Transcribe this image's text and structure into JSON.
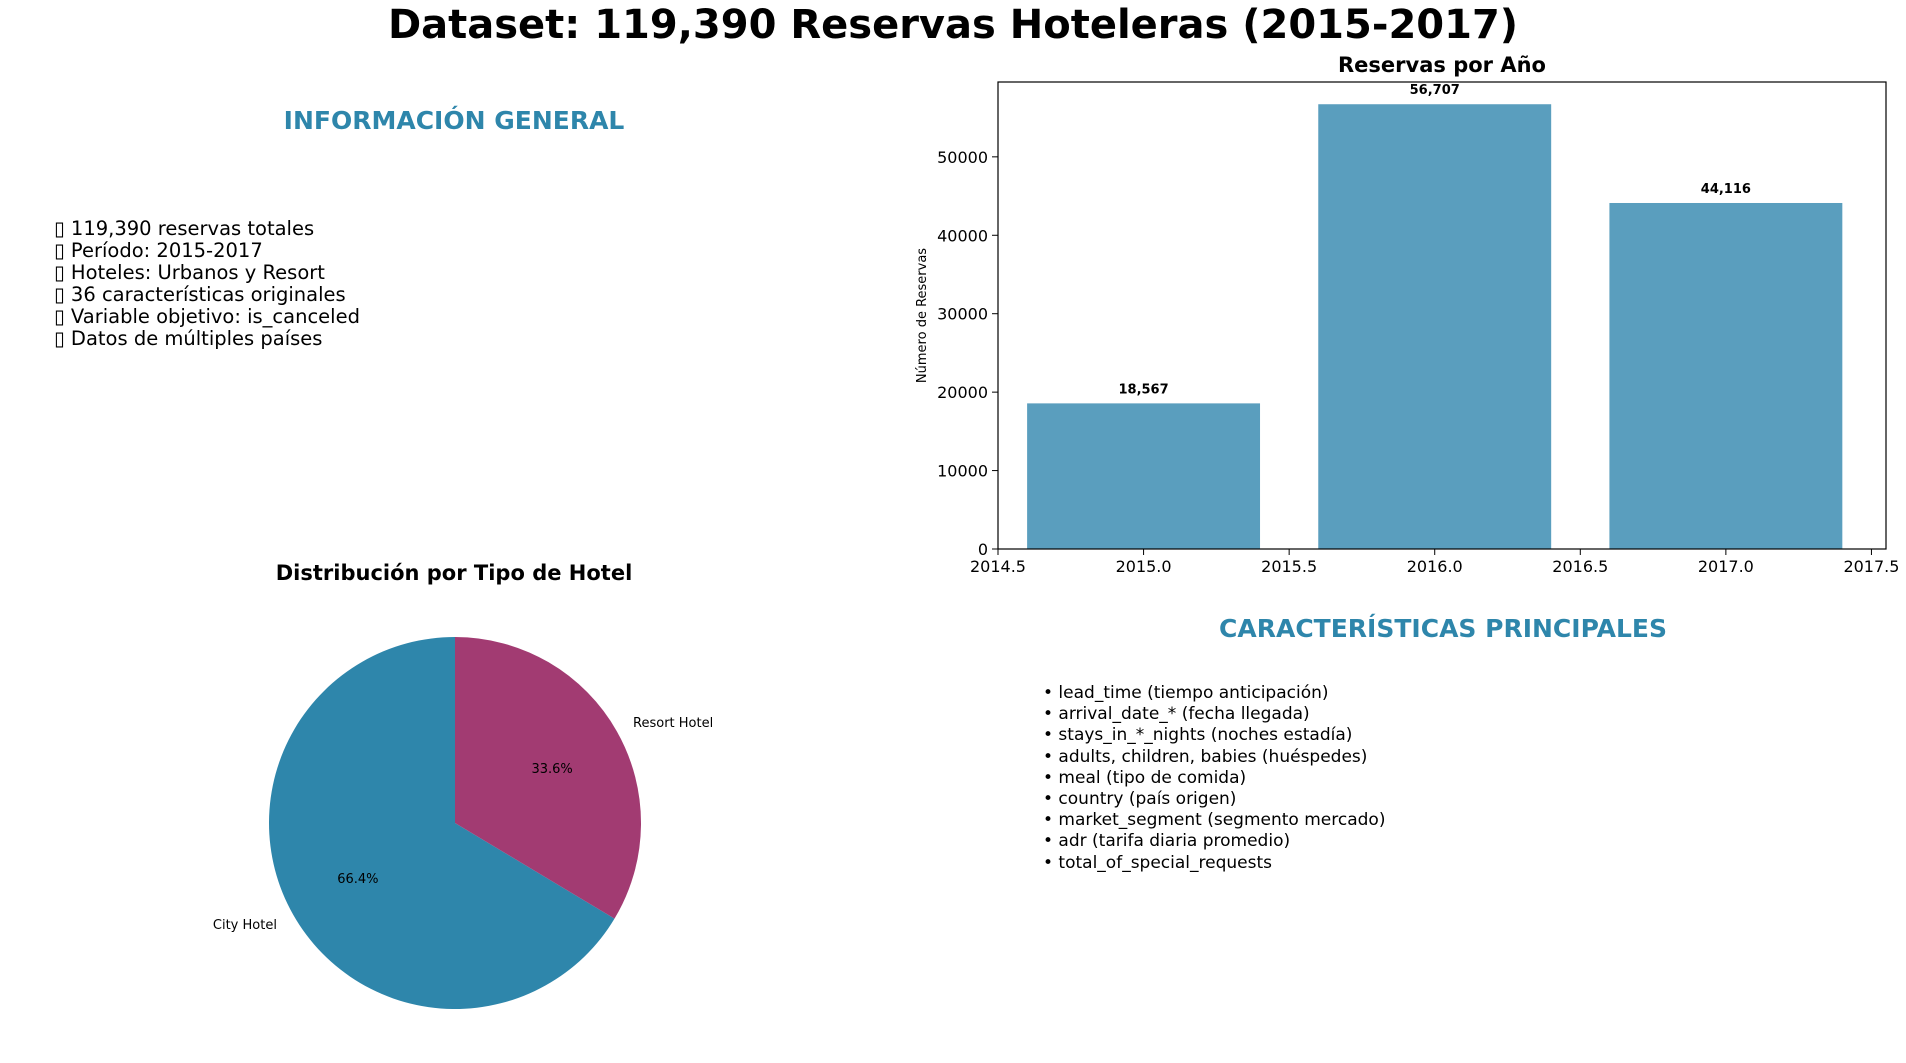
{
  "suptitle": "Dataset: 119,390 Reservas Hoteleras (2015-2017)",
  "info": {
    "title": "INFORMACIÓN GENERAL",
    "items": [
      "▯ 119,390 reservas totales",
      "▯ Período: 2015-2017",
      "▯ Hoteles: Urbanos y Resort",
      "▯ 36 características originales",
      "▯ Variable objetivo: is_canceled",
      "▯ Datos de múltiples países"
    ]
  },
  "features": {
    "title": "CARACTERÍSTICAS PRINCIPALES",
    "items": [
      "• lead_time (tiempo anticipación)",
      "• arrival_date_* (fecha llegada)",
      "• stays_in_*_nights (noches estadía)",
      "• adults, children, babies (huéspedes)",
      "• meal (tipo de comida)",
      "• country (país origen)",
      "• market_segment (segmento mercado)",
      "• adr (tarifa diaria promedio)",
      "• total_of_special_requests"
    ]
  },
  "chart_data": [
    {
      "type": "bar",
      "title": "Reservas por Año",
      "xlabel": "",
      "ylabel": "Número de Reservas",
      "x": [
        2015,
        2016,
        2017
      ],
      "values": [
        18567,
        56707,
        44116
      ],
      "value_labels": [
        "18,567",
        "56,707",
        "44,116"
      ],
      "bar_width": 0.8,
      "xlim": [
        2014.5,
        2017.55
      ],
      "ylim": [
        0,
        59542
      ],
      "xticks": [
        2014.5,
        2015.0,
        2015.5,
        2016.0,
        2016.5,
        2017.0,
        2017.5
      ],
      "xtick_labels": [
        "2014.5",
        "2015.0",
        "2015.5",
        "2016.0",
        "2016.5",
        "2017.0",
        "2017.5"
      ],
      "yticks": [
        0,
        10000,
        20000,
        30000,
        40000,
        50000
      ],
      "ytick_labels": [
        "0",
        "10000",
        "20000",
        "30000",
        "40000",
        "50000"
      ],
      "color": "#5a9ebe",
      "grid": false
    },
    {
      "type": "pie",
      "title": "Distribución por Tipo de Hotel",
      "labels": [
        "City Hotel",
        "Resort Hotel"
      ],
      "values": [
        66.4,
        33.6
      ],
      "pct_labels": [
        "66.4%",
        "33.6%"
      ],
      "colors": [
        "#2e86ab",
        "#a23b72"
      ],
      "startangle": 90
    }
  ]
}
